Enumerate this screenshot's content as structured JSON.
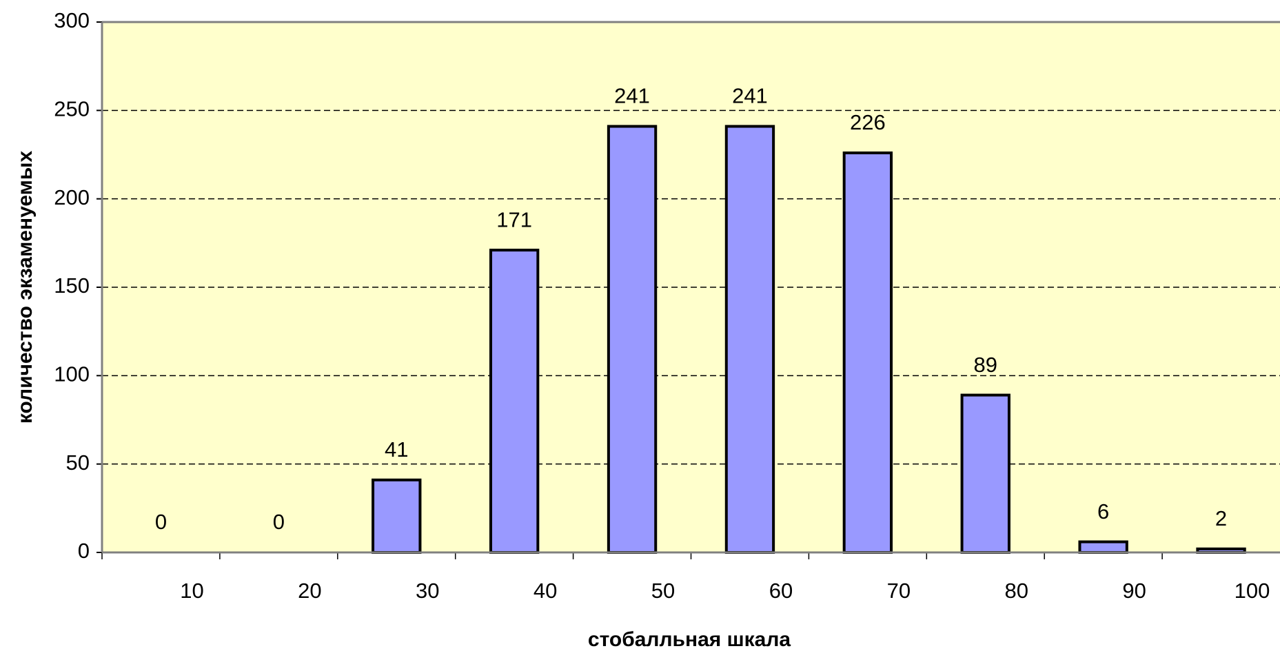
{
  "chart_data": {
    "type": "bar",
    "categories": [
      "10",
      "20",
      "30",
      "40",
      "50",
      "60",
      "70",
      "80",
      "90",
      "100"
    ],
    "values": [
      0,
      0,
      41,
      171,
      241,
      241,
      226,
      89,
      6,
      2
    ],
    "color": "#9999ff",
    "xlabel": "стобалльная шкала",
    "ylabel": "количество экзаменуемых",
    "ylim": [
      0,
      300
    ],
    "yticks": [
      0,
      50,
      100,
      150,
      200,
      250,
      300
    ],
    "grid": true
  }
}
